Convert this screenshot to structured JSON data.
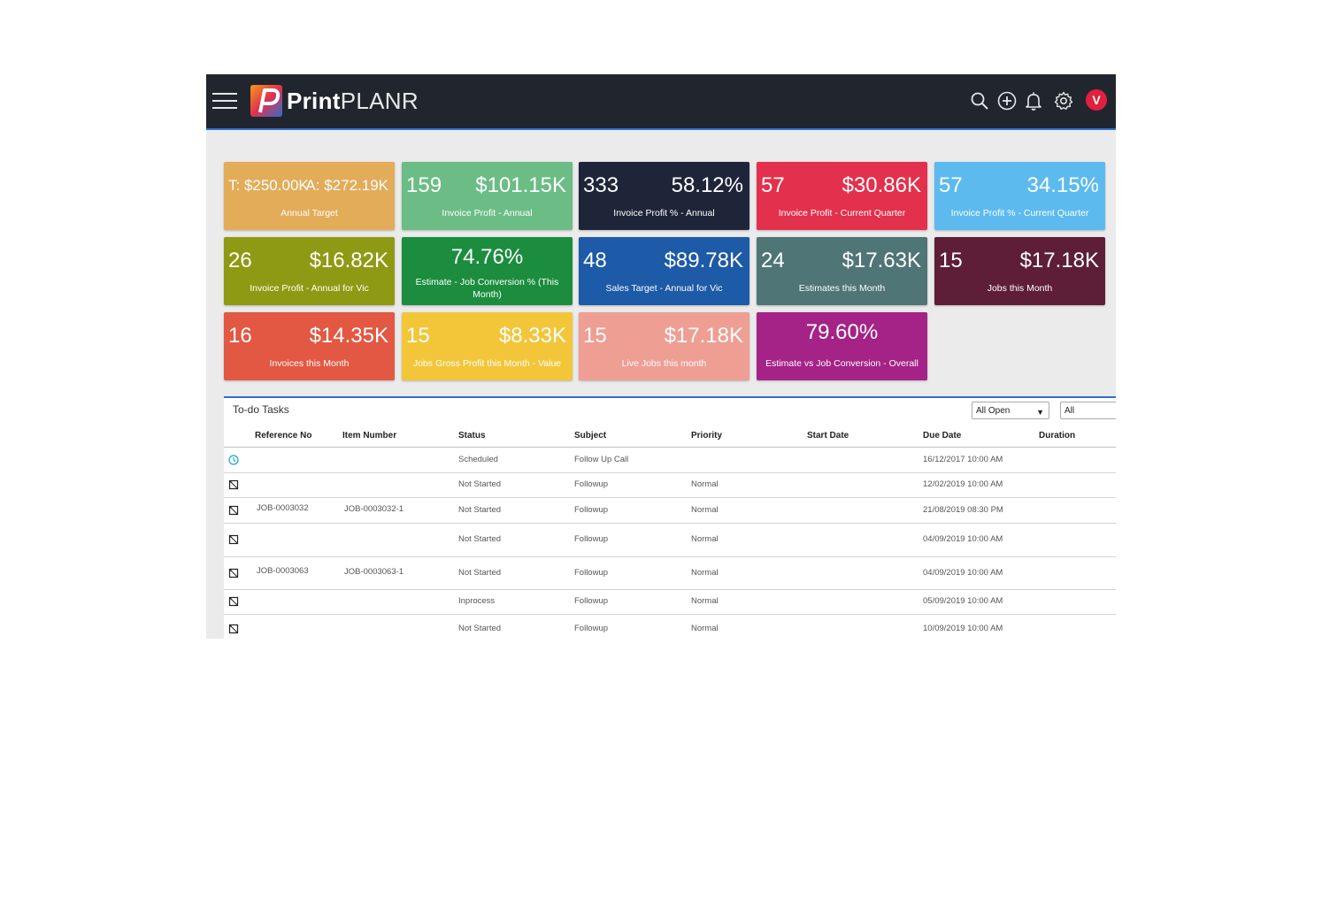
{
  "app": {
    "logo_bold": "Print",
    "logo_light": "PLANR",
    "avatar_letter": "V",
    "accent": "#2f6fd0",
    "topbar_color": "#21262e",
    "icons": [
      "menu-icon",
      "search-icon",
      "add-circle-icon",
      "bell-icon",
      "gear-icon"
    ]
  },
  "tiles": [
    {
      "left": "T: $250.00K",
      "right": "A: $272.19K",
      "label": "Annual Target",
      "color": "#e3ac59"
    },
    {
      "left": "159",
      "right": "$101.15K",
      "label": "Invoice Profit - Annual",
      "color": "#6bbd85"
    },
    {
      "left": "333",
      "right": "58.12%",
      "label": "Invoice Profit % - Annual",
      "color": "#1f2539"
    },
    {
      "left": "57",
      "right": "$30.86K",
      "label": "Invoice Profit - Current Quarter",
      "color": "#e3304c"
    },
    {
      "left": "57",
      "right": "34.15%",
      "label": "Invoice Profit % - Current Quarter",
      "color": "#5cbaef"
    },
    {
      "left": "26",
      "right": "$16.82K",
      "label": "Invoice Profit - Annual for Vic",
      "color": "#8f9a14"
    },
    {
      "center": "74.76%",
      "label": "Estimate - Job Conversion % (This Month)",
      "color": "#1c8d3e"
    },
    {
      "left": "48",
      "right": "$89.78K",
      "label": "Sales Target - Annual for Vic",
      "color": "#1d5aa7"
    },
    {
      "left": "24",
      "right": "$17.63K",
      "label": "Estimates this Month",
      "color": "#4f7576"
    },
    {
      "left": "15",
      "right": "$17.18K",
      "label": "Jobs this Month",
      "color": "#5e1e37"
    },
    {
      "left": "16",
      "right": "$14.35K",
      "label": "Invoices this Month",
      "color": "#e25843"
    },
    {
      "left": "15",
      "right": "$8.33K",
      "label": "Jobs Gross Profit this Month - Value",
      "color": "#f3c63a"
    },
    {
      "left": "15",
      "right": "$17.18K",
      "label": "Live Jobs this month",
      "color": "#ef9e93"
    },
    {
      "center": "79.60%",
      "label": "Estimate vs Job Conversion - Overall",
      "color": "#a52287"
    }
  ],
  "tasks": {
    "title": "To-do Tasks",
    "filter1": "All Open",
    "filter2": "All",
    "columns": [
      "Reference No",
      "Item Number",
      "Status",
      "Subject",
      "Priority",
      "Start Date",
      "Due Date",
      "Duration"
    ],
    "rows": [
      {
        "icon": "clock-icon",
        "ref": "",
        "item": "",
        "status": "Scheduled",
        "subject": "Follow Up Call",
        "priority": "",
        "start": "",
        "due": "16/12/2017 10:00 AM",
        "duration": ""
      },
      {
        "icon": "task-icon",
        "ref": "",
        "item": "",
        "status": "Not Started",
        "subject": "Followup",
        "priority": "Normal",
        "start": "",
        "due": "12/02/2019 10:00 AM",
        "duration": ""
      },
      {
        "icon": "task-icon",
        "ref": "JOB-0003032",
        "item": "JOB-0003032-1",
        "status": "Not Started",
        "subject": "Followup",
        "priority": "Normal",
        "start": "",
        "due": "21/08/2019 08:30 PM",
        "duration": ""
      },
      {
        "icon": "task-icon",
        "ref": "",
        "item": "",
        "status": "Not Started",
        "subject": "Followup",
        "priority": "Normal",
        "start": "",
        "due": "04/09/2019 10:00 AM",
        "duration": ""
      },
      {
        "icon": "task-icon",
        "ref": "JOB-0003063",
        "item": "JOB-0003063-1",
        "status": "Not Started",
        "subject": "Followup",
        "priority": "Normal",
        "start": "",
        "due": "04/09/2019 10:00 AM",
        "duration": ""
      },
      {
        "icon": "task-icon",
        "ref": "",
        "item": "",
        "status": "Inprocess",
        "subject": "Followup",
        "priority": "Normal",
        "start": "",
        "due": "05/09/2019 10:00 AM",
        "duration": ""
      },
      {
        "icon": "task-icon",
        "ref": "",
        "item": "",
        "status": "Not Started",
        "subject": "Followup",
        "priority": "Normal",
        "start": "",
        "due": "10/09/2019 10:00 AM",
        "duration": ""
      }
    ]
  }
}
